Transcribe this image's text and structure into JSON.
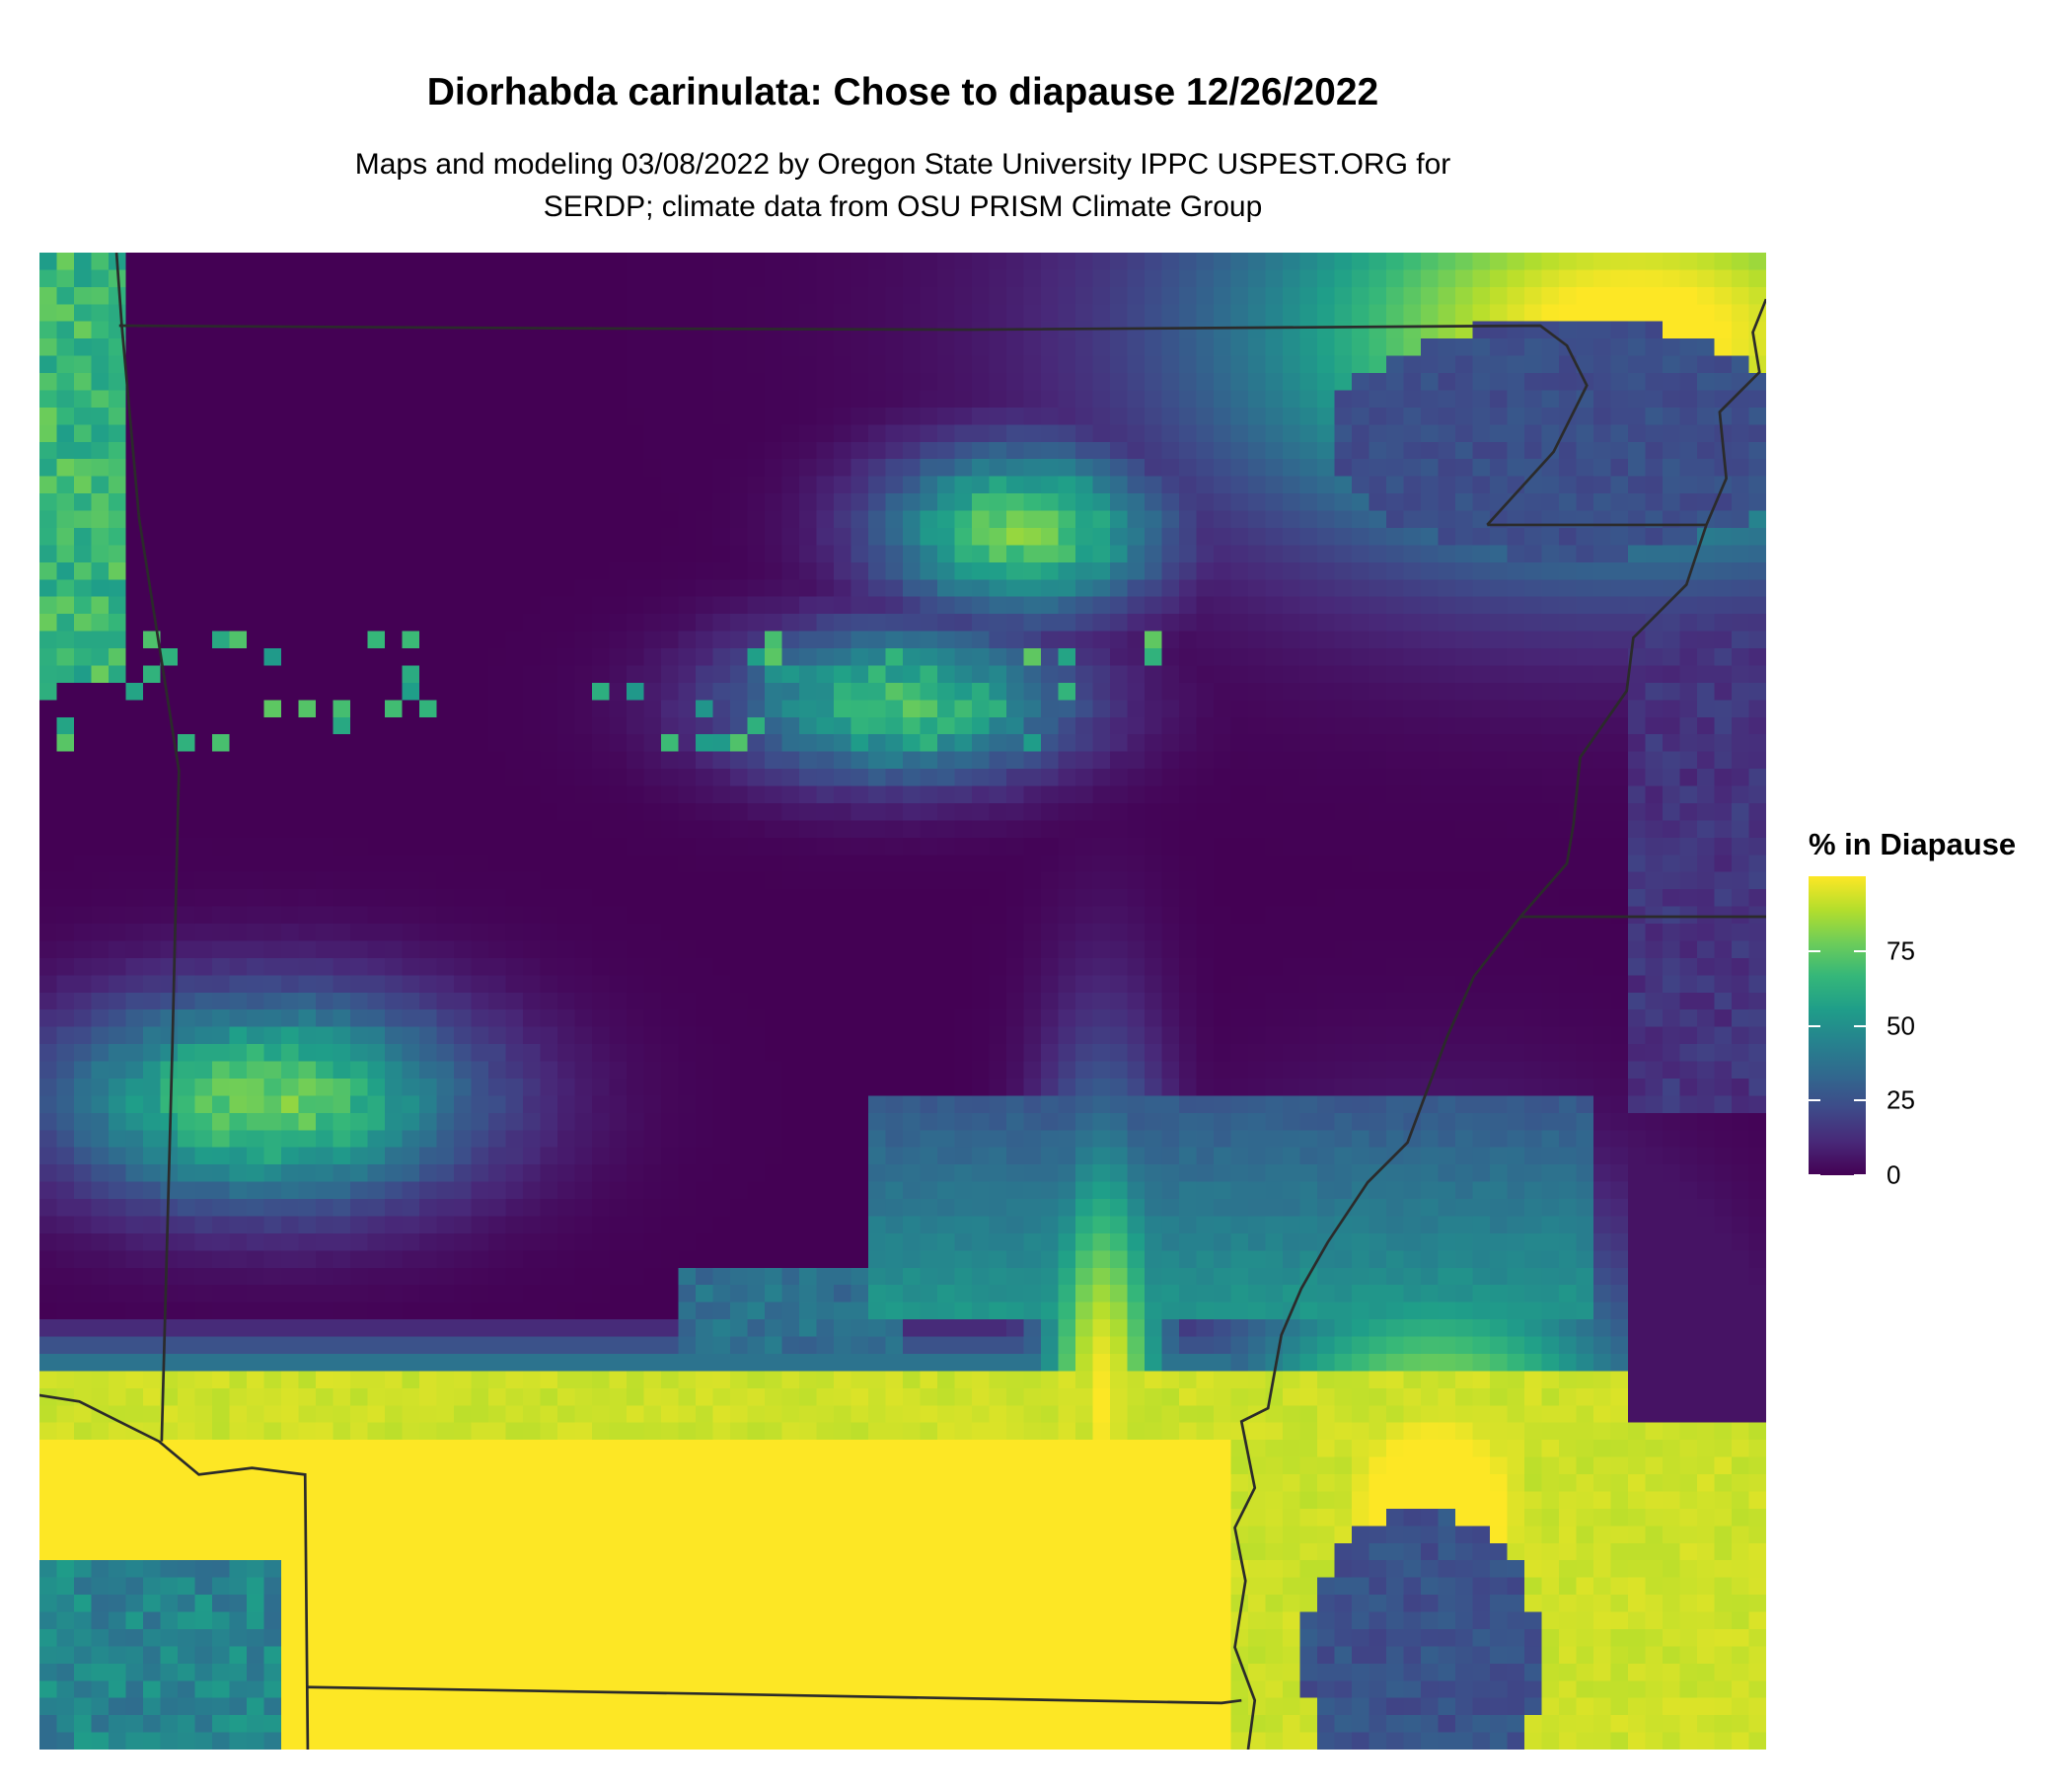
{
  "title": "Diorhabda carinulata: Chose to diapause 12/26/2022",
  "subtitle_line1": "Maps and modeling 03/08/2022 by Oregon State University IPPC USPEST.ORG for",
  "subtitle_line2": "SERDP; climate data from OSU PRISM Climate Group",
  "legend": {
    "title": "% in Diapause",
    "colormap": "viridis",
    "range": [
      0,
      100
    ],
    "ticks": [
      {
        "value": 0,
        "label": "0"
      },
      {
        "value": 25,
        "label": "25"
      },
      {
        "value": 50,
        "label": "50"
      },
      {
        "value": 75,
        "label": "75"
      }
    ]
  },
  "map": {
    "variable": "% in Diapause",
    "boundary_color": "#2b2b2b"
  }
}
